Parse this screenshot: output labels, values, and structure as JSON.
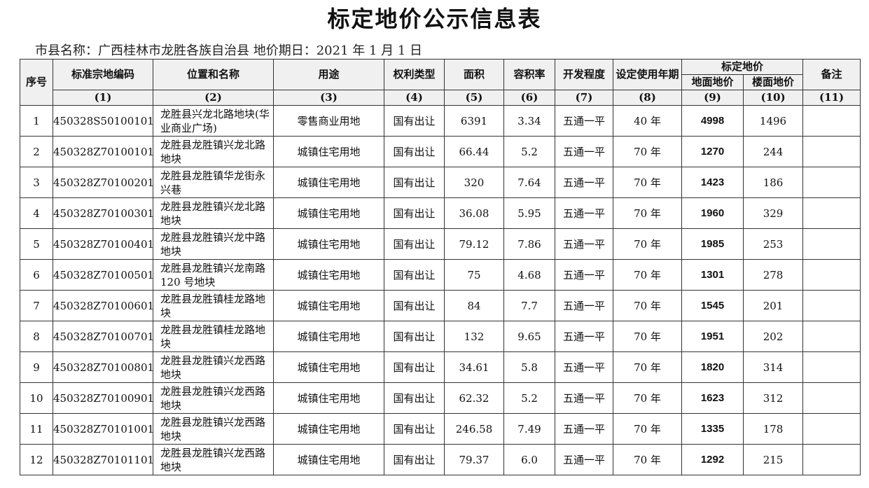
{
  "title": "标定地价公示信息表",
  "meta": "市县名称：广西桂林市龙胜各族自治县 地价期日：2021 年 1 月 1 日",
  "headers": {
    "seq": "序号",
    "code": "标准宗地编码",
    "location": "位置和名称",
    "use": "用途",
    "right": "权利类型",
    "area": "面积",
    "far": "容积率",
    "dev": "开发程度",
    "term": "设定使用年期",
    "price": "标定地价",
    "land_price": "地面地价",
    "floor_price": "楼面地价",
    "note": "备注",
    "nums": [
      "(1)",
      "(2)",
      "(3)",
      "(4)",
      "(5)",
      "(6)",
      "(7)",
      "(8)",
      "(9)",
      "(10)",
      "(11)"
    ]
  },
  "rows": [
    {
      "seq": "1",
      "code": "450328S50100101",
      "location": "龙胜县兴龙北路地块(华业商业广场)",
      "use": "零售商业用地",
      "right": "国有出让",
      "area": "6391",
      "far": "3.34",
      "dev": "五通一平",
      "term": "40 年",
      "land": "4998",
      "floor": "1496",
      "note": ""
    },
    {
      "seq": "2",
      "code": "450328Z70100101",
      "location": "龙胜县龙胜镇兴龙北路地块",
      "use": "城镇住宅用地",
      "right": "国有出让",
      "area": "66.44",
      "far": "5.2",
      "dev": "五通一平",
      "term": "70 年",
      "land": "1270",
      "floor": "244",
      "note": ""
    },
    {
      "seq": "3",
      "code": "450328Z70100201",
      "location": "龙胜县龙胜镇华龙街永兴巷",
      "use": "城镇住宅用地",
      "right": "国有出让",
      "area": "320",
      "far": "7.64",
      "dev": "五通一平",
      "term": "70 年",
      "land": "1423",
      "floor": "186",
      "note": ""
    },
    {
      "seq": "4",
      "code": "450328Z70100301",
      "location": "龙胜县龙胜镇兴龙北路地块",
      "use": "城镇住宅用地",
      "right": "国有出让",
      "area": "36.08",
      "far": "5.95",
      "dev": "五通一平",
      "term": "70 年",
      "land": "1960",
      "floor": "329",
      "note": ""
    },
    {
      "seq": "5",
      "code": "450328Z70100401",
      "location": "龙胜县龙胜镇兴龙中路地块",
      "use": "城镇住宅用地",
      "right": "国有出让",
      "area": "79.12",
      "far": "7.86",
      "dev": "五通一平",
      "term": "70 年",
      "land": "1985",
      "floor": "253",
      "note": ""
    },
    {
      "seq": "6",
      "code": "450328Z70100501",
      "location": "龙胜县龙胜镇兴龙南路 120 号地块",
      "use": "城镇住宅用地",
      "right": "国有出让",
      "area": "75",
      "far": "4.68",
      "dev": "五通一平",
      "term": "70 年",
      "land": "1301",
      "floor": "278",
      "note": ""
    },
    {
      "seq": "7",
      "code": "450328Z70100601",
      "location": "龙胜县龙胜镇桂龙路地块",
      "use": "城镇住宅用地",
      "right": "国有出让",
      "area": "84",
      "far": "7.7",
      "dev": "五通一平",
      "term": "70 年",
      "land": "1545",
      "floor": "201",
      "note": ""
    },
    {
      "seq": "8",
      "code": "450328Z70100701",
      "location": "龙胜县龙胜镇桂龙路地块",
      "use": "城镇住宅用地",
      "right": "国有出让",
      "area": "132",
      "far": "9.65",
      "dev": "五通一平",
      "term": "70 年",
      "land": "1951",
      "floor": "202",
      "note": ""
    },
    {
      "seq": "9",
      "code": "450328Z70100801",
      "location": "龙胜县龙胜镇兴龙西路地块",
      "use": "城镇住宅用地",
      "right": "国有出让",
      "area": "34.61",
      "far": "5.8",
      "dev": "五通一平",
      "term": "70 年",
      "land": "1820",
      "floor": "314",
      "note": ""
    },
    {
      "seq": "10",
      "code": "450328Z70100901",
      "location": "龙胜县龙胜镇兴龙西路地块",
      "use": "城镇住宅用地",
      "right": "国有出让",
      "area": "62.32",
      "far": "5.2",
      "dev": "五通一平",
      "term": "70 年",
      "land": "1623",
      "floor": "312",
      "note": ""
    },
    {
      "seq": "11",
      "code": "450328Z70101001",
      "location": "龙胜县龙胜镇兴龙西路地块",
      "use": "城镇住宅用地",
      "right": "国有出让",
      "area": "246.58",
      "far": "7.49",
      "dev": "五通一平",
      "term": "70 年",
      "land": "1335",
      "floor": "178",
      "note": ""
    },
    {
      "seq": "12",
      "code": "450328Z70101101",
      "location": "龙胜县龙胜镇兴龙西路地块",
      "use": "城镇住宅用地",
      "right": "国有出让",
      "area": "79.37",
      "far": "6.0",
      "dev": "五通一平",
      "term": "70 年",
      "land": "1292",
      "floor": "215",
      "note": ""
    }
  ]
}
